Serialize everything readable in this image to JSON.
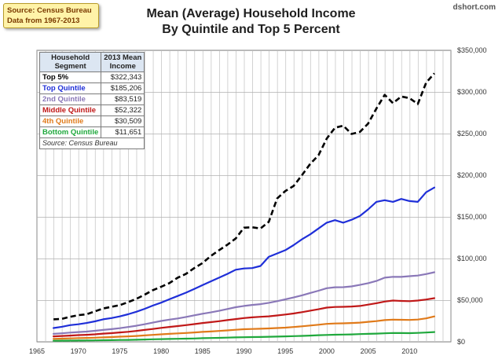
{
  "source_note": {
    "line1": "Source: Census Bureau",
    "line2": "Data from 1967-2013"
  },
  "brand": "dshort.com",
  "title": {
    "line1": "Mean (Average) Household Income",
    "line2": "By Quintile and Top 5 Percent"
  },
  "legend_table": {
    "header_col1": [
      "Household",
      "Segment"
    ],
    "header_col2": [
      "2013 Mean",
      "Income"
    ],
    "rows": [
      {
        "segment": "Top 5%",
        "value": "$322,343",
        "color": "#000000"
      },
      {
        "segment": "Top Quintile",
        "value": "$185,206",
        "color": "#1f2fd8"
      },
      {
        "segment": "2nd Quintile",
        "value": "$83,519",
        "color": "#8a78b8"
      },
      {
        "segment": "Middle Quintile",
        "value": "$52,322",
        "color": "#c01818"
      },
      {
        "segment": "4th Quintile",
        "value": "$30,509",
        "color": "#e07a1a"
      },
      {
        "segment": "Bottom Quintile",
        "value": "$11,651",
        "color": "#1fa83c"
      }
    ],
    "note": "Source: Census Bureau"
  },
  "chart_data": {
    "type": "line",
    "title": "Mean (Average) Household Income By Quintile and Top 5 Percent",
    "xlabel": "",
    "ylabel": "",
    "xlim": [
      1965,
      2015
    ],
    "ylim": [
      0,
      350000
    ],
    "x_ticks": [
      1965,
      1970,
      1975,
      1980,
      1985,
      1990,
      1995,
      2000,
      2005,
      2010
    ],
    "y_ticks": [
      0,
      50000,
      100000,
      150000,
      200000,
      250000,
      300000,
      350000
    ],
    "y_tick_labels": [
      "$0",
      "$50,000",
      "$100,000",
      "$150,000",
      "$200,000",
      "$250,000",
      "$300,000",
      "$350,000"
    ],
    "grid": true,
    "x": [
      1967,
      1968,
      1969,
      1970,
      1971,
      1972,
      1973,
      1974,
      1975,
      1976,
      1977,
      1978,
      1979,
      1980,
      1981,
      1982,
      1983,
      1984,
      1985,
      1986,
      1987,
      1988,
      1989,
      1990,
      1991,
      1992,
      1993,
      1994,
      1995,
      1996,
      1997,
      1998,
      1999,
      2000,
      2001,
      2002,
      2003,
      2004,
      2005,
      2006,
      2007,
      2008,
      2009,
      2010,
      2011,
      2012,
      2013
    ],
    "series": [
      {
        "name": "Top 5%",
        "color": "#000000",
        "dashed": true,
        "values": [
          27000,
          27500,
          30000,
          32000,
          33000,
          36500,
          40000,
          42000,
          44000,
          47500,
          51500,
          56500,
          62000,
          66000,
          70500,
          77000,
          81500,
          88500,
          94500,
          103000,
          110000,
          116500,
          124000,
          137000,
          137500,
          136000,
          144000,
          172000,
          181000,
          187000,
          200000,
          213500,
          224000,
          244000,
          257000,
          259500,
          249500,
          252000,
          262000,
          280000,
          296500,
          286500,
          294500,
          292500,
          285500,
          311000,
          322343
        ]
      },
      {
        "name": "Top Quintile",
        "color": "#1f2fd8",
        "dashed": false,
        "values": [
          16500,
          18000,
          20000,
          21000,
          22500,
          24500,
          27000,
          28500,
          30500,
          33000,
          36000,
          39500,
          43500,
          47000,
          51000,
          55000,
          59000,
          63500,
          68000,
          72500,
          77000,
          81500,
          86500,
          88000,
          88500,
          91000,
          102000,
          106000,
          110000,
          116000,
          123000,
          129000,
          136000,
          143000,
          146000,
          143000,
          146500,
          151000,
          159000,
          168000,
          170000,
          168000,
          171500,
          169000,
          168000,
          179500,
          185206
        ]
      },
      {
        "name": "2nd Quintile",
        "color": "#8a78b8",
        "dashed": false,
        "values": [
          9500,
          10200,
          11000,
          11700,
          12300,
          13200,
          14200,
          15200,
          16300,
          17700,
          19200,
          21000,
          23000,
          25000,
          26600,
          28000,
          29800,
          31800,
          33700,
          35300,
          37200,
          39300,
          41500,
          43000,
          44200,
          45200,
          46800,
          48800,
          50900,
          53200,
          55800,
          58600,
          61300,
          64300,
          65500,
          65600,
          66500,
          68300,
          70400,
          73000,
          77000,
          78000,
          77900,
          78800,
          79500,
          81300,
          83519
        ]
      },
      {
        "name": "Middle Quintile",
        "color": "#c01818",
        "dashed": false,
        "values": [
          6500,
          7000,
          7500,
          8000,
          8400,
          9000,
          9800,
          10400,
          11200,
          12000,
          13000,
          14200,
          15400,
          16700,
          17800,
          18900,
          20000,
          21200,
          22500,
          23600,
          24700,
          26000,
          27300,
          28500,
          29300,
          30000,
          30600,
          31600,
          32700,
          34000,
          35600,
          37400,
          39100,
          41000,
          41800,
          42000,
          42400,
          43000,
          44600,
          46300,
          48300,
          49500,
          49100,
          48800,
          49500,
          50800,
          52322
        ]
      },
      {
        "name": "4th Quintile",
        "color": "#e07a1a",
        "dashed": false,
        "values": [
          3500,
          3800,
          4100,
          4400,
          4600,
          4900,
          5300,
          5700,
          6100,
          6500,
          7000,
          7600,
          8300,
          9000,
          9500,
          10100,
          10600,
          11200,
          11900,
          12400,
          13000,
          13700,
          14400,
          15100,
          15400,
          15700,
          16000,
          16500,
          17000,
          17700,
          18600,
          19500,
          20500,
          21500,
          22000,
          22200,
          22500,
          23000,
          24000,
          24800,
          26000,
          26600,
          26400,
          26200,
          26700,
          28100,
          30509
        ]
      },
      {
        "name": "Bottom Quintile",
        "color": "#1fa83c",
        "dashed": false,
        "values": [
          1200,
          1300,
          1400,
          1500,
          1600,
          1700,
          1900,
          2000,
          2200,
          2300,
          2500,
          2700,
          3000,
          3200,
          3400,
          3600,
          3800,
          4000,
          4300,
          4500,
          4700,
          5000,
          5300,
          5500,
          5700,
          5800,
          6000,
          6200,
          6500,
          6800,
          7100,
          7500,
          7900,
          8200,
          8500,
          8700,
          8900,
          9200,
          9500,
          9800,
          10200,
          10600,
          10500,
          10400,
          10700,
          11100,
          11651
        ]
      }
    ]
  }
}
